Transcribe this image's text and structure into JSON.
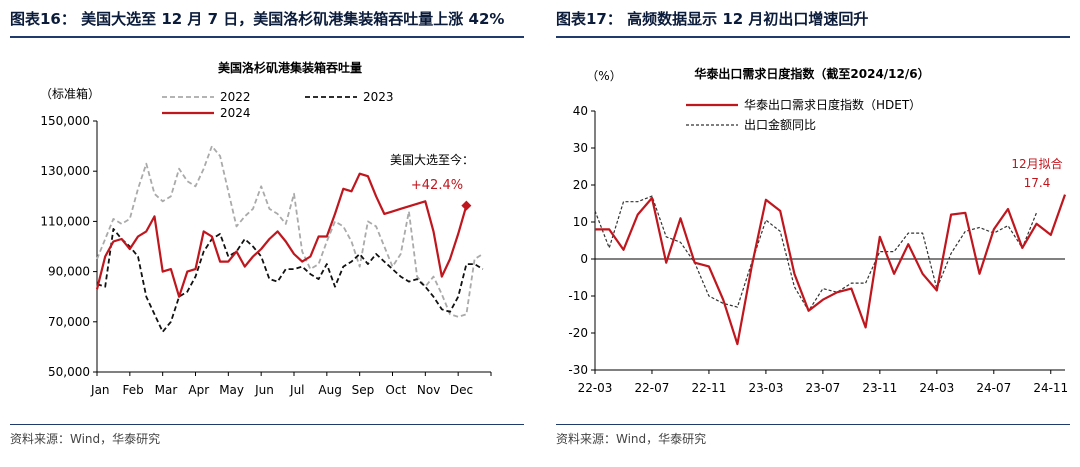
{
  "panels": {
    "left": {
      "header": "图表16：  美国大选至 12 月 7 日，美国洛杉矶港集装箱吞吐量上涨 42%",
      "source": "资料来源：Wind，华泰研究"
    },
    "right": {
      "header": "图表17：  高频数据显示 12 月初出口增速回升",
      "source": "资料来源：Wind，华泰研究"
    }
  },
  "chart_data": [
    {
      "type": "line",
      "title": "美国洛杉矶港集装箱吞吐量",
      "ylabel": "（标准箱）",
      "ylim": [
        50000,
        150000
      ],
      "yticks": [
        50000,
        70000,
        90000,
        110000,
        130000,
        150000
      ],
      "ytick_labels": [
        "50,000",
        "70,000",
        "90,000",
        "110,000",
        "130,000",
        "150,000"
      ],
      "xlim": [
        0,
        12
      ],
      "months": [
        "Jan",
        "Feb",
        "Mar",
        "Apr",
        "May",
        "Jun",
        "Jul",
        "Aug",
        "Sep",
        "Oct",
        "Nov",
        "Dec"
      ],
      "grid": false,
      "legend_position": "top",
      "annotation": {
        "line1": "美国大选至今：",
        "line2": "+42.4%",
        "color": "#c0161e",
        "marker": {
          "x": 11.25,
          "y": 116300
        }
      },
      "series": [
        {
          "name": "2022",
          "color": "#aaaaaa",
          "dash": "5,3",
          "width": 1.8,
          "x": [
            0.0,
            0.25,
            0.5,
            0.75,
            1.0,
            1.25,
            1.5,
            1.75,
            2.0,
            2.25,
            2.5,
            2.75,
            3.0,
            3.25,
            3.5,
            3.75,
            4.0,
            4.25,
            4.5,
            4.75,
            5.0,
            5.25,
            5.5,
            5.75,
            6.0,
            6.25,
            6.5,
            6.75,
            7.0,
            7.25,
            7.5,
            7.75,
            8.0,
            8.25,
            8.5,
            8.75,
            9.0,
            9.25,
            9.5,
            9.75,
            10.0,
            10.25,
            10.5,
            10.75,
            11.0,
            11.25,
            11.5,
            11.75
          ],
          "y": [
            95000,
            103000,
            111000,
            109000,
            111000,
            123000,
            133000,
            121000,
            118000,
            120000,
            131000,
            126000,
            124000,
            131000,
            140000,
            136000,
            122000,
            108000,
            112000,
            115000,
            124000,
            115000,
            113000,
            109000,
            121000,
            98000,
            91000,
            93000,
            102000,
            110000,
            108000,
            102000,
            92000,
            110000,
            108000,
            100000,
            92000,
            97000,
            114000,
            88000,
            84000,
            88000,
            81000,
            73000,
            72000,
            73000,
            95000,
            97000
          ]
        },
        {
          "name": "2023",
          "color": "#111111",
          "dash": "5,3",
          "width": 1.8,
          "x": [
            0.0,
            0.25,
            0.5,
            0.75,
            1.0,
            1.25,
            1.5,
            1.75,
            2.0,
            2.25,
            2.5,
            2.75,
            3.0,
            3.25,
            3.5,
            3.75,
            4.0,
            4.25,
            4.5,
            4.75,
            5.0,
            5.25,
            5.5,
            5.75,
            6.0,
            6.25,
            6.5,
            6.75,
            7.0,
            7.25,
            7.5,
            7.75,
            8.0,
            8.25,
            8.5,
            8.75,
            9.0,
            9.25,
            9.5,
            9.75,
            10.0,
            10.25,
            10.5,
            10.75,
            11.0,
            11.25,
            11.5,
            11.75
          ],
          "y": [
            85000,
            84000,
            107000,
            103000,
            100000,
            96000,
            80000,
            73000,
            66000,
            70000,
            80000,
            82000,
            88000,
            98000,
            103000,
            105000,
            96000,
            98000,
            103000,
            100000,
            96000,
            87000,
            86000,
            91000,
            91000,
            92000,
            89000,
            87000,
            93000,
            84000,
            92000,
            94000,
            97000,
            93000,
            97000,
            94000,
            91000,
            88000,
            86000,
            87000,
            84000,
            80000,
            75000,
            74000,
            80000,
            93000,
            93000,
            91000
          ]
        },
        {
          "name": "2024",
          "color": "#c0161e",
          "dash": "",
          "width": 2.2,
          "x": [
            0.0,
            0.25,
            0.5,
            0.75,
            1.0,
            1.25,
            1.5,
            1.75,
            2.0,
            2.25,
            2.5,
            2.75,
            3.0,
            3.25,
            3.5,
            3.75,
            4.0,
            4.25,
            4.5,
            4.75,
            5.0,
            5.25,
            5.5,
            5.75,
            6.0,
            6.25,
            6.5,
            6.75,
            7.0,
            7.25,
            7.5,
            7.75,
            8.0,
            8.25,
            8.5,
            8.75,
            9.0,
            9.25,
            9.5,
            9.75,
            10.0,
            10.25,
            10.5,
            10.75,
            11.0,
            11.25
          ],
          "y": [
            83000,
            96000,
            102000,
            103000,
            99000,
            104000,
            106000,
            112000,
            90000,
            91000,
            80000,
            90000,
            91000,
            106000,
            104000,
            94000,
            94000,
            98000,
            92000,
            96000,
            99000,
            103000,
            106000,
            102000,
            97000,
            94000,
            96000,
            104000,
            104000,
            113000,
            123000,
            122000,
            129000,
            128000,
            120000,
            113000,
            114000,
            115000,
            116000,
            117000,
            118000,
            106000,
            88000,
            95000,
            105000,
            116300
          ]
        }
      ]
    },
    {
      "type": "line",
      "title": "华泰出口需求日度指数（截至2024/12/6）",
      "ylabel": "（%）",
      "ylim": [
        -30,
        40
      ],
      "yticks": [
        -30,
        -20,
        -10,
        0,
        10,
        20,
        30,
        40
      ],
      "ytick_labels": [
        "-30",
        "-20",
        "-10",
        "0",
        "10",
        "20",
        "30",
        "40"
      ],
      "xlim": [
        0,
        33
      ],
      "xtick_positions": [
        0,
        4,
        8,
        12,
        16,
        20,
        24,
        28,
        32
      ],
      "xtick_labels": [
        "22-03",
        "22-07",
        "22-11",
        "23-03",
        "23-07",
        "23-11",
        "24-03",
        "24-07",
        "24-11"
      ],
      "grid": false,
      "legend_position": "top-left",
      "annotation": {
        "line1": "12月拟合",
        "line2": "17.4",
        "color": "#c0161e"
      },
      "series": [
        {
          "name": "华泰出口需求日度指数（HDET）",
          "color": "#c0161e",
          "dash": "",
          "width": 2.2,
          "x": [
            0,
            1,
            2,
            3,
            4,
            5,
            6,
            7,
            8,
            9,
            10,
            11,
            12,
            13,
            14,
            15,
            16,
            17,
            18,
            19,
            20,
            21,
            22,
            23,
            24,
            25,
            26,
            27,
            28,
            29,
            30,
            31,
            32,
            33
          ],
          "y": [
            8,
            8,
            2.5,
            12,
            16.5,
            -1,
            11,
            -1,
            -2,
            -11,
            -23,
            -2,
            16,
            13,
            -4,
            -14,
            -11,
            -9,
            -8,
            -18.5,
            6,
            -4,
            4,
            -4,
            -8.5,
            12,
            12.5,
            -4,
            8,
            13.5,
            3,
            9.5,
            6.5,
            17.4
          ]
        },
        {
          "name": "出口金额同比",
          "color": "#333333",
          "dash": "3,2",
          "width": 1.2,
          "x": [
            0,
            1,
            2,
            3,
            4,
            5,
            6,
            7,
            8,
            9,
            10,
            11,
            12,
            13,
            14,
            15,
            16,
            17,
            18,
            19,
            20,
            21,
            22,
            23,
            24,
            25,
            26,
            27,
            28,
            29,
            30,
            31
          ],
          "y": [
            13,
            3,
            15.5,
            15.5,
            17,
            6,
            4.5,
            -1,
            -10,
            -12,
            -13,
            -1,
            10.5,
            7.5,
            -7.5,
            -14,
            -8,
            -9,
            -6.5,
            -6.5,
            2,
            2,
            7,
            7,
            -8,
            1.5,
            7.5,
            8.5,
            7,
            9,
            3,
            12.5
          ]
        }
      ]
    }
  ]
}
